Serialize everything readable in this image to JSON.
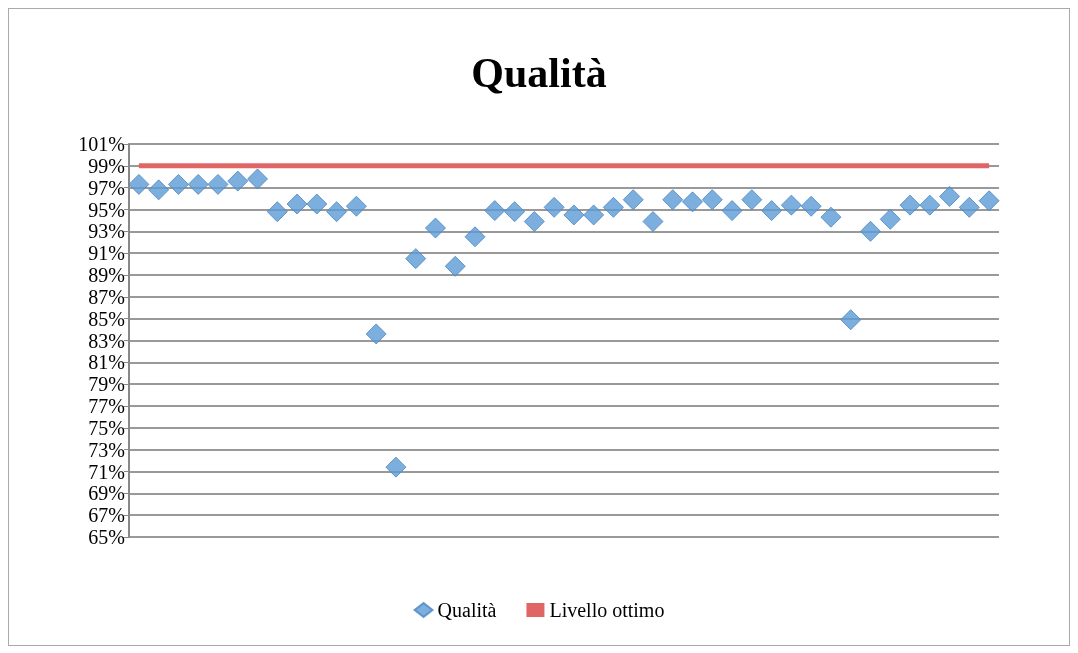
{
  "chart_data": {
    "type": "scatter",
    "title": "Qualità",
    "categories": [
      null,
      null,
      null,
      null,
      null,
      null,
      null,
      null,
      null,
      null,
      null,
      null,
      null,
      null,
      null,
      null,
      null,
      null,
      null,
      null,
      null,
      null,
      null,
      null,
      null,
      null,
      null,
      null,
      null,
      null,
      null,
      null,
      null,
      null,
      null,
      null,
      null,
      null,
      null,
      null,
      null,
      null,
      null,
      null
    ],
    "series": [
      {
        "name": "Qualità",
        "color": "#5b9bd5",
        "marker": "diamond",
        "values": [
          97.3,
          96.8,
          97.3,
          97.3,
          97.3,
          97.6,
          97.8,
          94.8,
          95.5,
          95.5,
          94.8,
          95.3,
          83.6,
          71.4,
          90.5,
          93.3,
          89.8,
          92.5,
          94.9,
          94.8,
          93.9,
          95.2,
          94.5,
          94.5,
          95.2,
          95.9,
          93.9,
          95.9,
          95.7,
          95.9,
          94.9,
          95.9,
          94.9,
          95.4,
          95.3,
          94.3,
          84.9,
          93.0,
          94.1,
          95.4,
          95.4,
          96.2,
          95.2,
          95.8
        ]
      },
      {
        "name": "Livello ottimo",
        "type": "line",
        "color": "#e06666",
        "marker": "none",
        "line_style": "solid",
        "values": [
          99,
          99,
          99,
          99,
          99,
          99,
          99,
          99,
          99,
          99,
          99,
          99,
          99,
          99,
          99,
          99,
          99,
          99,
          99,
          99,
          99,
          99,
          99,
          99,
          99,
          99,
          99,
          99,
          99,
          99,
          99,
          99,
          99,
          99,
          99,
          99,
          99,
          99,
          99,
          99,
          99,
          99,
          99,
          99
        ]
      }
    ],
    "ylim": [
      65,
      101
    ],
    "yticks": [
      {
        "value": 65,
        "label": "65%"
      },
      {
        "value": 67,
        "label": "67%"
      },
      {
        "value": 69,
        "label": "69%"
      },
      {
        "value": 71,
        "label": "71%"
      },
      {
        "value": 73,
        "label": "73%"
      },
      {
        "value": 75,
        "label": "75%"
      },
      {
        "value": 77,
        "label": "77%"
      },
      {
        "value": 79,
        "label": "79%"
      },
      {
        "value": 81,
        "label": "81%"
      },
      {
        "value": 83,
        "label": "83%"
      },
      {
        "value": 85,
        "label": "85%"
      },
      {
        "value": 87,
        "label": "87%"
      },
      {
        "value": 89,
        "label": "89%"
      },
      {
        "value": 91,
        "label": "91%"
      },
      {
        "value": 93,
        "label": "93%"
      },
      {
        "value": 95,
        "label": "95%"
      },
      {
        "value": 97,
        "label": "97%"
      },
      {
        "value": 99,
        "label": "99%"
      },
      {
        "value": 101,
        "label": "101%"
      }
    ],
    "grid": "y",
    "legend": "bottom"
  }
}
